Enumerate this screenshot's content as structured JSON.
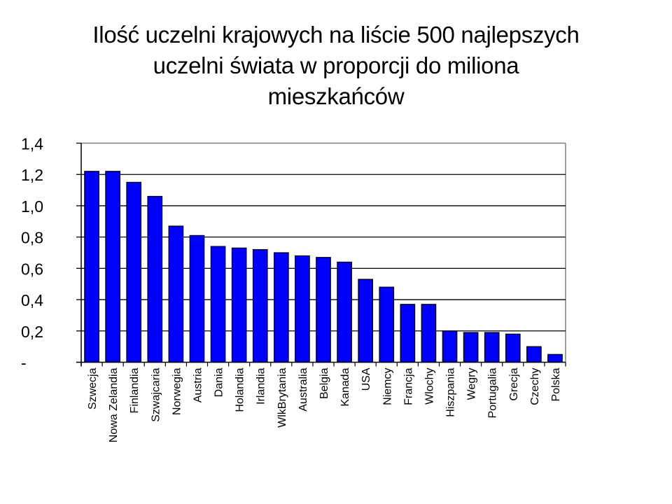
{
  "title_lines": [
    "Ilość uczelni krajowych na liście 500 najlepszych",
    "uczelni świata w proporcji do miliona",
    "mieszkańców"
  ],
  "colors": {
    "bar_fill": "#0000FF",
    "bar_stroke": "#000000",
    "gridline": "#000000",
    "plot_border": "#808080",
    "background": "#FFFFFF"
  },
  "chart_data": {
    "type": "bar",
    "title": "Ilość uczelni krajowych na liście 500 najlepszych uczelni świata w proporcji do miliona mieszkańców",
    "xlabel": "",
    "ylabel": "",
    "ylim": [
      0,
      1.4
    ],
    "yticks": [
      0,
      0.2,
      0.4,
      0.6,
      0.8,
      1.0,
      1.2,
      1.4
    ],
    "ytick_labels": [
      "-",
      "0,2",
      "0,4",
      "0,6",
      "0,8",
      "1,0",
      "1,2",
      "1,4"
    ],
    "grid": true,
    "legend": "none",
    "categories": [
      "Szwecja",
      "Nowa Zelandia",
      "Finlandia",
      "Szwajcaria",
      "Norwegia",
      "Austria",
      "Dania",
      "Holandia",
      "Irlandia",
      "WlkBrytania",
      "Australia",
      "Belgia",
      "Kanada",
      "USA",
      "Niemcy",
      "Francja",
      "Wlochy",
      "Hiszpania",
      "Wegry",
      "Portugalia",
      "Grecja",
      "Czechy",
      "Polska"
    ],
    "values": [
      1.22,
      1.22,
      1.15,
      1.06,
      0.87,
      0.81,
      0.74,
      0.73,
      0.72,
      0.7,
      0.68,
      0.67,
      0.64,
      0.53,
      0.48,
      0.37,
      0.37,
      0.2,
      0.19,
      0.19,
      0.18,
      0.1,
      0.05
    ]
  }
}
